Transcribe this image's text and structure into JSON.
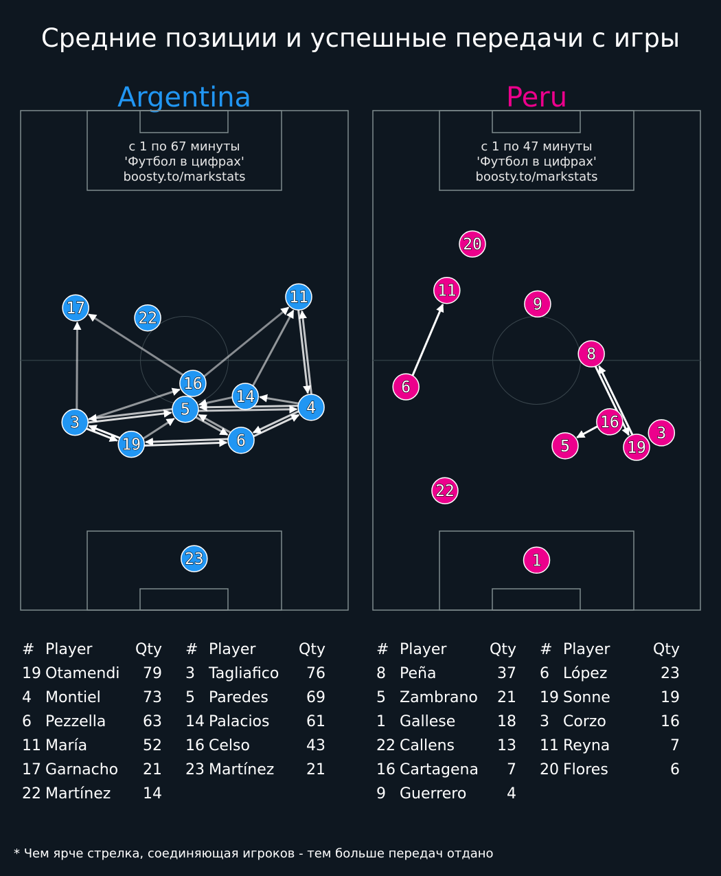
{
  "title": "Средние позиции и успешные передачи с игры",
  "footnote": "* Чем ярче стрелка, соединяющая игроков - тем больше передач отдано",
  "table_headers": {
    "num": "#",
    "player": "Player",
    "qty": "Qty"
  },
  "chart_data": {
    "type": "scatter",
    "coordinate_units": "pitch percent (x across width 0-100, y along length 0-100 from top)",
    "teams": [
      {
        "name": "Argentina",
        "color": "#2196f3",
        "info": [
          "с 1 по 67 минуты",
          "'Футбол в цифрах'",
          "boosty.to/markstats"
        ],
        "nodes": [
          {
            "n": "17",
            "x": 16.8,
            "y": 39.5
          },
          {
            "n": "22",
            "x": 38.8,
            "y": 41.5
          },
          {
            "n": "11",
            "x": 84.9,
            "y": 37.3
          },
          {
            "n": "16",
            "x": 52.6,
            "y": 54.6
          },
          {
            "n": "14",
            "x": 68.6,
            "y": 57.2
          },
          {
            "n": "5",
            "x": 50.3,
            "y": 59.8
          },
          {
            "n": "4",
            "x": 88.7,
            "y": 59.4
          },
          {
            "n": "3",
            "x": 16.6,
            "y": 62.4
          },
          {
            "n": "19",
            "x": 33.8,
            "y": 66.8
          },
          {
            "n": "6",
            "x": 67.3,
            "y": 66.0
          },
          {
            "n": "23",
            "x": 53.0,
            "y": 89.7
          }
        ],
        "passes": [
          {
            "from": "3",
            "to": "17",
            "alpha": 0.55
          },
          {
            "from": "16",
            "to": "17",
            "alpha": 0.5
          },
          {
            "from": "16",
            "to": "11",
            "alpha": 0.5
          },
          {
            "from": "14",
            "to": "11",
            "alpha": 0.55
          },
          {
            "from": "11",
            "to": "4",
            "alpha": 0.8
          },
          {
            "from": "4",
            "to": "11",
            "alpha": 0.75
          },
          {
            "from": "3",
            "to": "16",
            "alpha": 0.55
          },
          {
            "from": "3",
            "to": "5",
            "alpha": 0.85
          },
          {
            "from": "5",
            "to": "3",
            "alpha": 0.7
          },
          {
            "from": "14",
            "to": "5",
            "alpha": 0.55
          },
          {
            "from": "4",
            "to": "14",
            "alpha": 0.6
          },
          {
            "from": "4",
            "to": "5",
            "alpha": 0.8
          },
          {
            "from": "5",
            "to": "4",
            "alpha": 0.75
          },
          {
            "from": "5",
            "to": "6",
            "alpha": 0.65
          },
          {
            "from": "6",
            "to": "5",
            "alpha": 0.6
          },
          {
            "from": "6",
            "to": "4",
            "alpha": 0.85
          },
          {
            "from": "4",
            "to": "6",
            "alpha": 0.8
          },
          {
            "from": "19",
            "to": "3",
            "alpha": 1.0
          },
          {
            "from": "3",
            "to": "19",
            "alpha": 0.95
          },
          {
            "from": "19",
            "to": "5",
            "alpha": 0.55
          },
          {
            "from": "19",
            "to": "6",
            "alpha": 0.9
          },
          {
            "from": "6",
            "to": "19",
            "alpha": 0.85
          }
        ],
        "table": [
          [
            {
              "num": "#",
              "player": "Player",
              "qty": "Qty"
            },
            {
              "num": "19",
              "player": "Otamendi",
              "qty": "79"
            },
            {
              "num": "4",
              "player": "Montiel",
              "qty": "73"
            },
            {
              "num": "6",
              "player": "Pezzella",
              "qty": "63"
            },
            {
              "num": "11",
              "player": "María",
              "qty": "52"
            },
            {
              "num": "17",
              "player": "Garnacho",
              "qty": "21"
            },
            {
              "num": "22",
              "player": "Martínez",
              "qty": "14"
            }
          ],
          [
            {
              "num": "#",
              "player": "Player",
              "qty": "Qty"
            },
            {
              "num": "3",
              "player": "Tagliafico",
              "qty": "76"
            },
            {
              "num": "5",
              "player": "Paredes",
              "qty": "69"
            },
            {
              "num": "14",
              "player": "Palacios",
              "qty": "61"
            },
            {
              "num": "16",
              "player": "Celso",
              "qty": "43"
            },
            {
              "num": "23",
              "player": "Martínez",
              "qty": "21"
            }
          ]
        ]
      },
      {
        "name": "Peru",
        "color": "#ec008c",
        "info": [
          "с 1 по 47 минуты",
          "'Футбол в цифрах'",
          "boosty.to/markstats"
        ],
        "nodes": [
          {
            "n": "20",
            "x": 30.4,
            "y": 26.7
          },
          {
            "n": "11",
            "x": 22.6,
            "y": 36.0
          },
          {
            "n": "9",
            "x": 50.3,
            "y": 38.7
          },
          {
            "n": "8",
            "x": 66.7,
            "y": 48.7
          },
          {
            "n": "6",
            "x": 10.1,
            "y": 55.3
          },
          {
            "n": "16",
            "x": 72.3,
            "y": 62.3
          },
          {
            "n": "5",
            "x": 58.7,
            "y": 67.1
          },
          {
            "n": "3",
            "x": 82.6,
            "y": 66.6
          },
          {
            "n": "19",
            "x": 80.5,
            "y": 67.4
          },
          {
            "n": "22",
            "x": 22.0,
            "y": 76.1
          },
          {
            "n": "1",
            "x": 50.0,
            "y": 90.0
          }
        ],
        "passes": [
          {
            "from": "6",
            "to": "11",
            "alpha": 1.0
          },
          {
            "from": "16",
            "to": "5",
            "alpha": 1.0
          },
          {
            "from": "8",
            "to": "19",
            "alpha": 1.0
          },
          {
            "from": "19",
            "to": "8",
            "alpha": 1.0
          }
        ],
        "table": [
          [
            {
              "num": "#",
              "player": "Player",
              "qty": "Qty"
            },
            {
              "num": "8",
              "player": "Peña",
              "qty": "37"
            },
            {
              "num": "5",
              "player": "Zambrano",
              "qty": "21"
            },
            {
              "num": "1",
              "player": "Gallese",
              "qty": "18"
            },
            {
              "num": "22",
              "player": "Callens",
              "qty": "13"
            },
            {
              "num": "16",
              "player": "Cartagena",
              "qty": "7"
            },
            {
              "num": "9",
              "player": "Guerrero",
              "qty": "4"
            }
          ],
          [
            {
              "num": "#",
              "player": "Player",
              "qty": "Qty"
            },
            {
              "num": "6",
              "player": "López",
              "qty": "23"
            },
            {
              "num": "19",
              "player": "Sonne",
              "qty": "19"
            },
            {
              "num": "3",
              "player": "Corzo",
              "qty": "16"
            },
            {
              "num": "11",
              "player": "Reyna",
              "qty": "7"
            },
            {
              "num": "20",
              "player": "Flores",
              "qty": "6"
            }
          ]
        ]
      }
    ]
  }
}
